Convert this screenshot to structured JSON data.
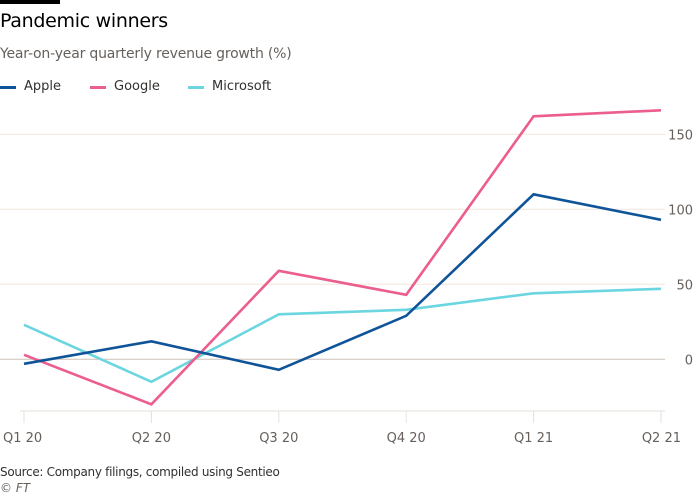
{
  "header": {
    "title": "Pandemic winners",
    "subtitle": "Year-on-year quarterly revenue growth (%)"
  },
  "footer": {
    "source": "Source: Company filings, compiled using Sentieo",
    "credit": "© FT"
  },
  "chart_data": {
    "type": "line",
    "title": "Pandemic winners",
    "subtitle": "Year-on-year quarterly revenue growth (%)",
    "xlabel": "",
    "ylabel": "Year-on-year quarterly revenue growth (%)",
    "categories": [
      "Q1 20",
      "Q2 20",
      "Q3 20",
      "Q4 20",
      "Q1 21",
      "Q2 21"
    ],
    "yticks": [
      0,
      50,
      100,
      150
    ],
    "ylim": [
      -35,
      170
    ],
    "grid": true,
    "legend_position": "top-left",
    "y_axis_side": "right",
    "series": [
      {
        "name": "Apple",
        "color": "#0f5499",
        "values": [
          -3,
          12,
          -7,
          29,
          110,
          93
        ]
      },
      {
        "name": "Google",
        "color": "#eb5e8d",
        "values": [
          3,
          -30,
          59,
          43,
          162,
          166
        ]
      },
      {
        "name": "Microsoft",
        "color": "#6bd6e0",
        "values": [
          23,
          -15,
          30,
          33,
          44,
          47
        ]
      }
    ]
  }
}
